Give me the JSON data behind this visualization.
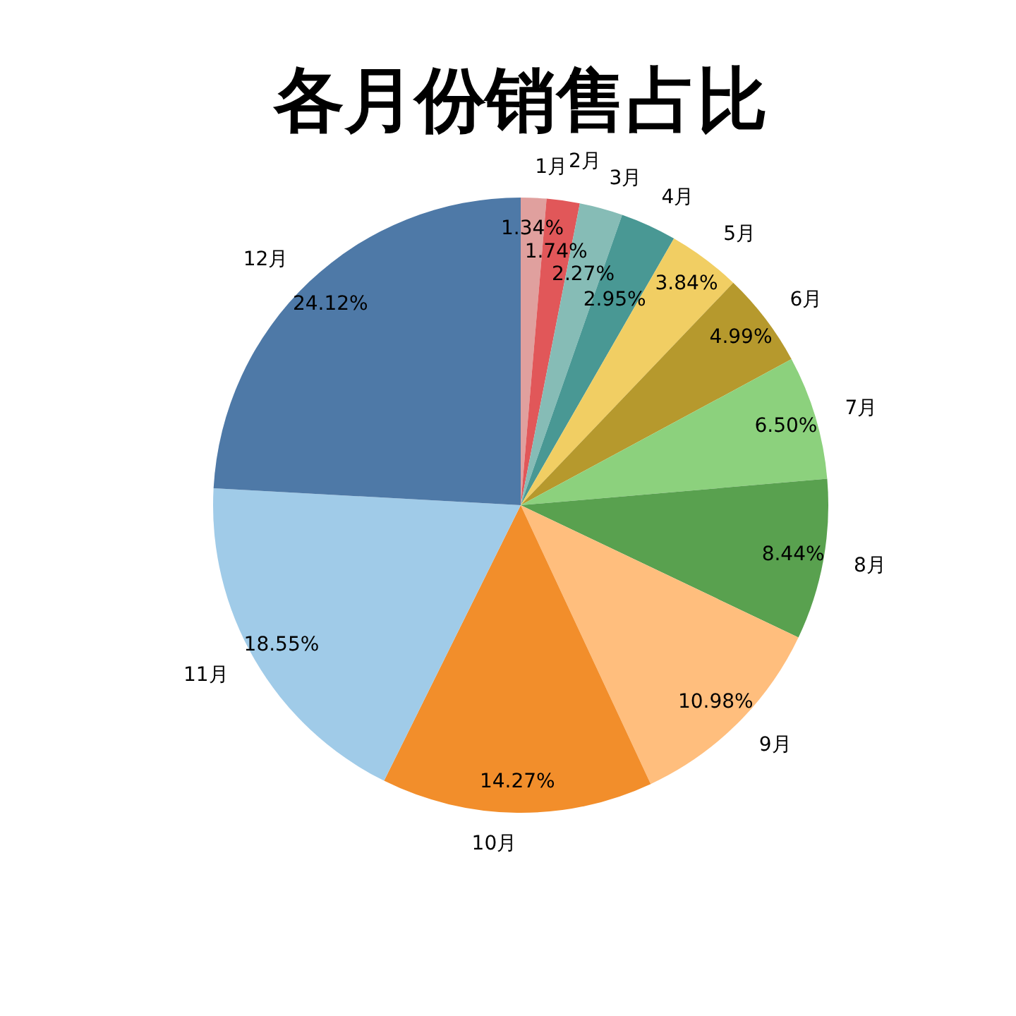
{
  "chart_data": {
    "type": "pie",
    "title": "各月份销售占比",
    "categories": [
      "1月",
      "2月",
      "3月",
      "4月",
      "5月",
      "6月",
      "7月",
      "8月",
      "9月",
      "10月",
      "11月",
      "12月"
    ],
    "values": [
      1.34,
      1.74,
      2.27,
      2.95,
      3.84,
      4.99,
      6.5,
      8.44,
      10.98,
      14.27,
      18.55,
      24.12
    ],
    "value_labels": [
      "1.34%",
      "1.74%",
      "2.27%",
      "2.95%",
      "3.84%",
      "4.99%",
      "6.50%",
      "8.44%",
      "10.98%",
      "14.27%",
      "18.55%",
      "24.12%"
    ],
    "colors": [
      "#e0a09e",
      "#e15759",
      "#86bcb6",
      "#499894",
      "#f1ce63",
      "#b6992d",
      "#8cd17d",
      "#59a14f",
      "#ffbe7d",
      "#f28e2b",
      "#a0cbe8",
      "#4e79a7"
    ]
  }
}
